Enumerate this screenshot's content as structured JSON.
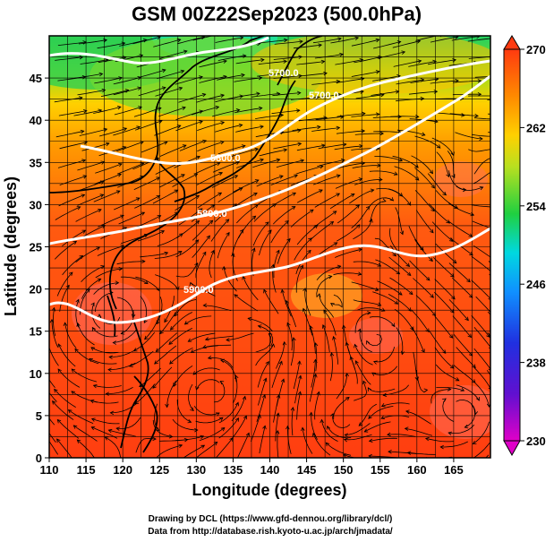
{
  "title": "GSM 00Z22Sep2023 (500.0hPa)",
  "xlabel": "Longitude (degrees)",
  "ylabel": "Latitude  (degrees)",
  "x_ticks": [
    "110",
    "115",
    "120",
    "125",
    "130",
    "135",
    "140",
    "145",
    "150",
    "155",
    "160",
    "165"
  ],
  "y_ticks": [
    "0",
    "5",
    "10",
    "15",
    "20",
    "25",
    "30",
    "35",
    "40",
    "45"
  ],
  "colorbar": {
    "ticks": [
      "230",
      "238",
      "246",
      "254",
      "262",
      "270"
    ],
    "colors": [
      "#e000c8",
      "#3a0fd0",
      "#2060ff",
      "#00c8ff",
      "#00e0a0",
      "#20d040",
      "#b0e020",
      "#ffd000",
      "#ff8a00",
      "#ff3a10"
    ]
  },
  "contours": [
    {
      "label": "5900.0"
    },
    {
      "label": "5800.0"
    },
    {
      "label": "5700.0"
    },
    {
      "label": "5600.0"
    }
  ],
  "credits": [
    "Drawing by DCL (https://www.gfd-dennou.org/library/dcl/)",
    "Data from http://database.rish.kyoto-u.ac.jp/arch/jmadata/"
  ],
  "chart_data": {
    "type": "heatmap",
    "title": "GSM 00Z22Sep2023 (500.0hPa)",
    "xlabel": "Longitude (degrees)",
    "ylabel": "Latitude  (degrees)",
    "xlim": [
      110,
      170
    ],
    "ylim": [
      0,
      50
    ],
    "colorbar_range": [
      230,
      270
    ],
    "colorbar_ticks": [
      230,
      238,
      246,
      254,
      262,
      270
    ],
    "contour_levels": [
      5600,
      5700,
      5800,
      5900
    ],
    "grid": true,
    "overlays": [
      "streamlines",
      "coastlines",
      "height contours"
    ]
  }
}
